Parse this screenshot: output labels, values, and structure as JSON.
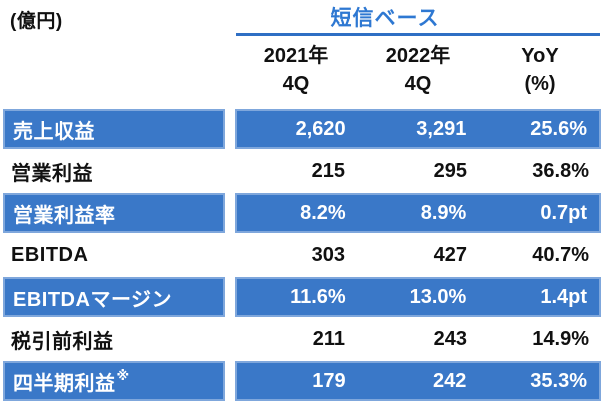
{
  "header": {
    "unit": "(億円)",
    "basis_title": "短信ベース",
    "columns": [
      {
        "line1": "2021年",
        "line2": "4Q"
      },
      {
        "line1": "2022年",
        "line2": "4Q"
      },
      {
        "line1": "YoY",
        "line2": "(%)"
      }
    ]
  },
  "table": {
    "rows": [
      {
        "label": "売上収益",
        "note": "",
        "values": [
          "2,620",
          "3,291",
          "25.6%"
        ],
        "highlight": true
      },
      {
        "label": "営業利益",
        "note": "",
        "values": [
          "215",
          "295",
          "36.8%"
        ],
        "highlight": false
      },
      {
        "label": "営業利益率",
        "note": "",
        "values": [
          "8.2%",
          "8.9%",
          "0.7pt"
        ],
        "highlight": true
      },
      {
        "label": "EBITDA",
        "note": "",
        "values": [
          "303",
          "427",
          "40.7%"
        ],
        "highlight": false
      },
      {
        "label": "EBITDAマージン",
        "note": "",
        "values": [
          "11.6%",
          "13.0%",
          "1.4pt"
        ],
        "highlight": true
      },
      {
        "label": "税引前利益",
        "note": "",
        "values": [
          "211",
          "243",
          "14.9%"
        ],
        "highlight": false
      },
      {
        "label": "四半期利益",
        "note": "※",
        "values": [
          "179",
          "242",
          "35.3%"
        ],
        "highlight": true
      }
    ]
  },
  "colors": {
    "row_highlight_fill": "#3a78c8",
    "row_highlight_border": "#7fa7dc",
    "basis_text": "#2e78d2",
    "underline": "#2f6fc4",
    "text_dark": "#111111",
    "text_light": "#ffffff"
  }
}
